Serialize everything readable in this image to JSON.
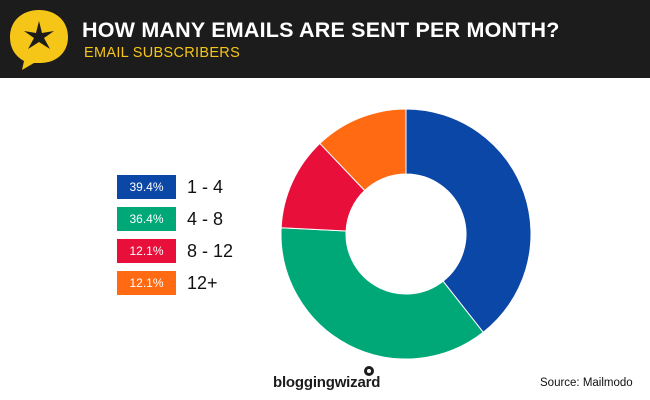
{
  "header": {
    "title": "HOW MANY EMAILS ARE SENT PER MONTH?",
    "subtitle": "EMAIL SUBSCRIBERS",
    "icon": "star-speech-bubble-icon"
  },
  "colors": {
    "header_bg": "#1c1c1c",
    "accent_yellow": "#f5c518",
    "blue": "#0b47a6",
    "green": "#00a878",
    "red": "#e8103a",
    "orange": "#ff6a13"
  },
  "chart_data": {
    "type": "pie",
    "variant": "donut",
    "categories": [
      "1 - 4",
      "4 - 8",
      "8 - 12",
      "12+"
    ],
    "values": [
      39.4,
      36.4,
      12.1,
      12.1
    ],
    "value_labels": [
      "39.4%",
      "36.4%",
      "12.1%",
      "12.1%"
    ],
    "colors": [
      "#0b47a6",
      "#00a878",
      "#e8103a",
      "#ff6a13"
    ],
    "start": "top",
    "direction": "clockwise",
    "legend_position": "left"
  },
  "footer": {
    "brand": "bloggingwizard",
    "source": "Source: Mailmodo"
  }
}
